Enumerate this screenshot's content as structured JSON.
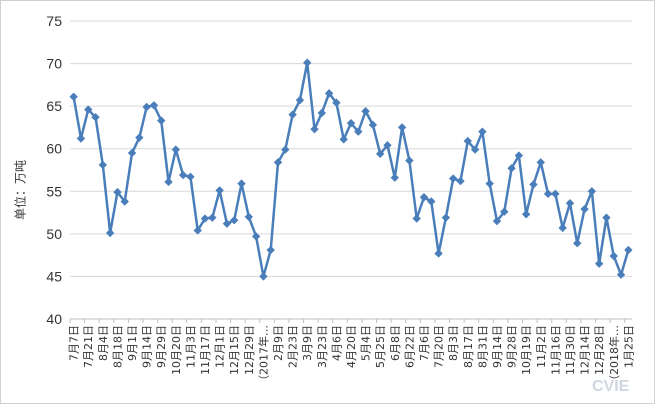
{
  "watermark": "CVIE",
  "chart_data": {
    "type": "line",
    "ylabel": "单位：万吨",
    "xlabel": "",
    "ylim": [
      40,
      75
    ],
    "yticks": [
      40,
      45,
      50,
      55,
      60,
      65,
      70,
      75
    ],
    "grid": "horizontal",
    "legend": "none",
    "series": [
      {
        "color": "#4a7ebb",
        "values": [
          66.1,
          61.2,
          64.6,
          63.7,
          58.1,
          50.1,
          54.9,
          53.8,
          59.5,
          61.3,
          64.9,
          65.1,
          63.3,
          56.1,
          59.9,
          56.9,
          56.7,
          50.4,
          51.8,
          51.9,
          55.1,
          51.2,
          51.6,
          55.9,
          52.0,
          49.7,
          45.0,
          48.1,
          58.4,
          59.9,
          64.0,
          65.7,
          70.1,
          62.3,
          64.2,
          66.5,
          65.4,
          61.1,
          63.0,
          62.0,
          64.4,
          62.8,
          59.4,
          60.4,
          56.6,
          62.5,
          58.6,
          51.8,
          54.3,
          53.8,
          47.7,
          51.9,
          56.5,
          56.2,
          60.9,
          59.9,
          62.0,
          55.9,
          51.5,
          52.6,
          57.7,
          59.2,
          52.3,
          55.8,
          58.4,
          54.7,
          54.7,
          50.7,
          53.6,
          48.9,
          52.9,
          55.0,
          46.5,
          51.9,
          47.4,
          45.2,
          48.1
        ]
      }
    ],
    "xtick_labels": [
      "7月7日",
      "7月21日",
      "8月4日",
      "8月18日",
      "9月1日",
      "9月14日",
      "9月29日",
      "10月20日",
      "11月3日",
      "11月17日",
      "12月1日",
      "12月15日",
      "12月29日",
      "（2017年…",
      "2月9日",
      "2月23日",
      "3月9日",
      "3月23日",
      "4月6日",
      "4月20日",
      "5月4日",
      "5月25日",
      "6月8日",
      "6月22日",
      "7月6日",
      "7月20日",
      "8月3日",
      "8月17日",
      "8月31日",
      "9月14日",
      "9月28日",
      "10月19日",
      "11月2日",
      "11月16日",
      "11月30日",
      "12月14日",
      "12月28日",
      "（2018年…",
      "1月25日"
    ]
  }
}
